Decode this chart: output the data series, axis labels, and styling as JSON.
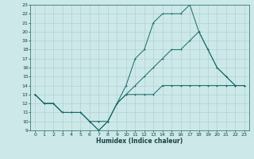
{
  "xlabel": "Humidex (Indice chaleur)",
  "bg_color": "#cce8e8",
  "grid_color": "#aacccc",
  "line_color": "#1a6868",
  "xlim": [
    -0.5,
    23.5
  ],
  "ylim": [
    9,
    23
  ],
  "xticks": [
    0,
    1,
    2,
    3,
    4,
    5,
    6,
    7,
    8,
    9,
    10,
    11,
    12,
    13,
    14,
    15,
    16,
    17,
    18,
    19,
    20,
    21,
    22,
    23
  ],
  "yticks": [
    9,
    10,
    11,
    12,
    13,
    14,
    15,
    16,
    17,
    18,
    19,
    20,
    21,
    22,
    23
  ],
  "line1_x": [
    0,
    1,
    2,
    3,
    4,
    5,
    6,
    7,
    8,
    9,
    10,
    11,
    12,
    13,
    14,
    15,
    16,
    17,
    18,
    19,
    20,
    21,
    22,
    23
  ],
  "line1_y": [
    13,
    12,
    12,
    11,
    11,
    11,
    10,
    9,
    10,
    12,
    14,
    17,
    18,
    21,
    22,
    22,
    22,
    23,
    20,
    18,
    16,
    15,
    14,
    14
  ],
  "line2_x": [
    0,
    1,
    2,
    3,
    4,
    5,
    6,
    7,
    8,
    9,
    10,
    11,
    12,
    13,
    14,
    15,
    16,
    17,
    18,
    19,
    20,
    21,
    22,
    23
  ],
  "line2_y": [
    13,
    12,
    12,
    11,
    11,
    11,
    10,
    10,
    10,
    12,
    13,
    14,
    15,
    16,
    17,
    18,
    18,
    19,
    20,
    18,
    16,
    15,
    14,
    14
  ],
  "line3_x": [
    0,
    1,
    2,
    3,
    4,
    5,
    6,
    7,
    8,
    9,
    10,
    11,
    12,
    13,
    14,
    15,
    16,
    17,
    18,
    19,
    20,
    21,
    22,
    23
  ],
  "line3_y": [
    13,
    12,
    12,
    11,
    11,
    11,
    10,
    9,
    10,
    12,
    13,
    13,
    13,
    13,
    14,
    14,
    14,
    14,
    14,
    14,
    14,
    14,
    14,
    14
  ]
}
